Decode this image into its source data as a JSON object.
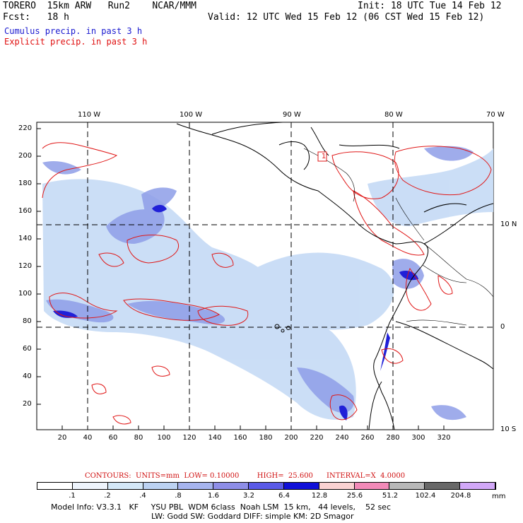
{
  "header": {
    "model": "TORERO  15km ARW   Run2    NCAR/MMM",
    "init": "Init: 18 UTC Tue 14 Feb 12",
    "fcst": "Fcst:   18 h",
    "valid": "Valid: 12 UTC Wed 15 Feb 12 (06 CST Wed 15 Feb 12)",
    "cumulus": "Cumulus precip. in past 3 h",
    "explicit": "Explicit precip. in past 3 h"
  },
  "map": {
    "lon_labels": [
      "110 W",
      "100 W",
      "90 W",
      "80 W",
      "70 W"
    ],
    "lat_labels": [
      "10 N",
      "0",
      "10 S"
    ],
    "y_ticks": [
      "220",
      "200",
      "180",
      "160",
      "140",
      "120",
      "100",
      "80",
      "60",
      "40",
      "20"
    ],
    "x_ticks": [
      "20",
      "40",
      "60",
      "80",
      "100",
      "120",
      "140",
      "160",
      "180",
      "200",
      "220",
      "240",
      "260",
      "280",
      "300",
      "320"
    ],
    "marker": "1"
  },
  "contours_line": "CONTOURS:  UNITS=mm  LOW= 0.10000        HIGH=  25.600      INTERVAL=X  4.0000",
  "colorbar": {
    "labels": [
      ".1",
      ".2",
      ".4",
      ".8",
      "1.6",
      "3.2",
      "6.4",
      "12.8",
      "25.6",
      "51.2",
      "102.4",
      "204.8"
    ],
    "unit": "mm",
    "colors": [
      "#ffffff",
      "#eef4fc",
      "#d4e8f8",
      "#bcd2f2",
      "#a6b4ee",
      "#8e8ee8",
      "#5a5ae8",
      "#1010d8",
      "#fad2d2",
      "#f28ab8",
      "#b8b8b8",
      "#686868",
      "#d2a8f8"
    ]
  },
  "model_info": {
    "line1": "Model Info: V3.3.1   KF     YSU PBL  WDM 6class  Noah LSM  15 km,   44 levels,    52 sec",
    "line2": "LW: Godd SW: Goddard DIFF: simple KM: 2D Smagor"
  }
}
